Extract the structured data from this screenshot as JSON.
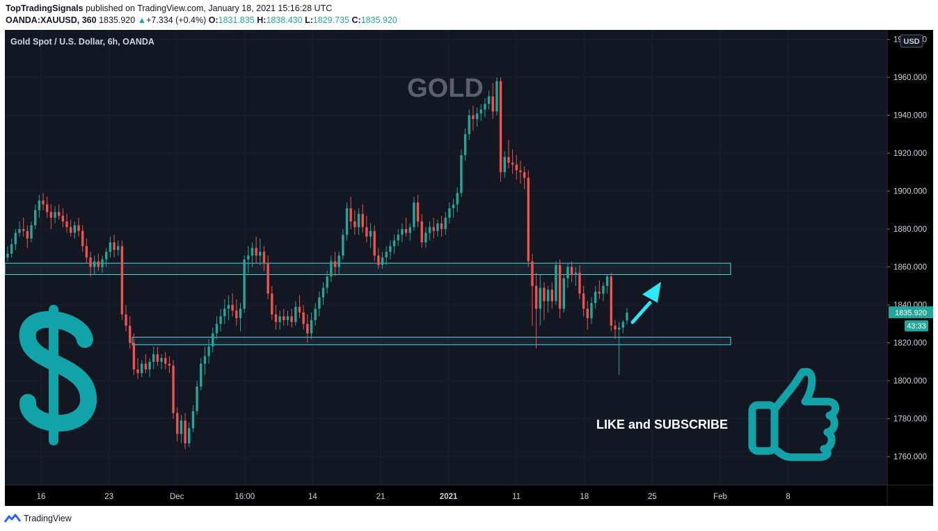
{
  "header": {
    "author": "TopTradingSignals",
    "published": "published on TradingView.com, January 18, 2021 15:16:28 UTC",
    "symbol": "OANDA:XAUUSD, 360",
    "last": "1835.920",
    "change": "+7.334 (+0.4%)",
    "o_label": "O:",
    "o": "1831.835",
    "h_label": "H:",
    "h": "1838.430",
    "l_label": "L:",
    "l": "1829.735",
    "c_label": "C:",
    "c": "1835.920"
  },
  "colors": {
    "up": "#26a69a",
    "down": "#ef5350",
    "background": "#000000",
    "zone": "#4fd6e8",
    "accent": "#12a3a8"
  },
  "footer": {
    "brand": "TradingView"
  },
  "chart_data": {
    "type": "candlestick",
    "title": "Gold Spot / U.S. Dollar, 6h, OANDA",
    "watermark": "GOLD",
    "currency": "USD",
    "ylim": [
      1745,
      1985
    ],
    "y_ticks": [
      "1980.000",
      "1960.000",
      "1940.000",
      "1920.000",
      "1900.000",
      "1880.000",
      "1860.000",
      "1840.000",
      "1820.000",
      "1800.000",
      "1780.000",
      "1760.000"
    ],
    "x_ticks": [
      "16",
      "23",
      "Dec",
      "16:00",
      "14",
      "21",
      "2021",
      "11",
      "18",
      "25",
      "Feb",
      "8"
    ],
    "last_price": "1835.920",
    "countdown": "43:33",
    "zones": [
      {
        "low": 1856,
        "high": 1862
      },
      {
        "low": 1819,
        "high": 1823
      }
    ],
    "annotation": "LIKE and SUBSCRIBE",
    "candles": [
      [
        1865.0,
        1871.0,
        1863.0,
        1867.0
      ],
      [
        1867.0,
        1875.0,
        1865.0,
        1872.0
      ],
      [
        1872.0,
        1880.0,
        1869.0,
        1878.0
      ],
      [
        1878.0,
        1884.0,
        1876.0,
        1880.0
      ],
      [
        1880.0,
        1886.0,
        1876.0,
        1879.0
      ],
      [
        1879.0,
        1882.0,
        1870.0,
        1875.0
      ],
      [
        1875.0,
        1884.0,
        1873.0,
        1882.0
      ],
      [
        1882.0,
        1893.0,
        1880.0,
        1890.0
      ],
      [
        1890.0,
        1898.0,
        1886.0,
        1895.0
      ],
      [
        1895.0,
        1899.0,
        1890.0,
        1893.0
      ],
      [
        1893.0,
        1897.0,
        1886.0,
        1889.0
      ],
      [
        1889.0,
        1893.0,
        1880.0,
        1886.0
      ],
      [
        1886.0,
        1892.0,
        1883.0,
        1889.0
      ],
      [
        1889.0,
        1893.0,
        1885.0,
        1887.0
      ],
      [
        1887.0,
        1891.0,
        1881.0,
        1884.0
      ],
      [
        1884.0,
        1888.0,
        1878.0,
        1881.0
      ],
      [
        1881.0,
        1885.0,
        1876.0,
        1878.0
      ],
      [
        1878.0,
        1884.0,
        1875.0,
        1882.0
      ],
      [
        1882.0,
        1886.0,
        1876.0,
        1879.0
      ],
      [
        1879.0,
        1882.0,
        1868.0,
        1871.0
      ],
      [
        1871.0,
        1875.0,
        1862.0,
        1865.0
      ],
      [
        1865.0,
        1868.0,
        1855.0,
        1860.0
      ],
      [
        1860.0,
        1866.0,
        1856.0,
        1863.0
      ],
      [
        1863.0,
        1867.0,
        1858.0,
        1860.0
      ],
      [
        1860.0,
        1866.0,
        1857.0,
        1864.0
      ],
      [
        1864.0,
        1870.0,
        1860.0,
        1868.0
      ],
      [
        1868.0,
        1876.0,
        1865.0,
        1873.0
      ],
      [
        1873.0,
        1877.0,
        1865.0,
        1869.0
      ],
      [
        1869.0,
        1874.0,
        1866.0,
        1871.0
      ],
      [
        1871.0,
        1874.0,
        1832.0,
        1835.0
      ],
      [
        1835.0,
        1840.0,
        1826.0,
        1829.0
      ],
      [
        1829.0,
        1834.0,
        1817.0,
        1820.0
      ],
      [
        1820.0,
        1825.0,
        1803.0,
        1806.0
      ],
      [
        1806.0,
        1812.0,
        1801.0,
        1804.0
      ],
      [
        1804.0,
        1811.0,
        1802.0,
        1809.0
      ],
      [
        1809.0,
        1814.0,
        1804.0,
        1806.0
      ],
      [
        1806.0,
        1812.0,
        1802.0,
        1810.0
      ],
      [
        1810.0,
        1818.0,
        1806.0,
        1814.0
      ],
      [
        1814.0,
        1818.0,
        1808.0,
        1810.0
      ],
      [
        1810.0,
        1814.0,
        1806.0,
        1812.0
      ],
      [
        1812.0,
        1815.0,
        1806.0,
        1809.0
      ],
      [
        1809.0,
        1813.0,
        1804.0,
        1808.0
      ],
      [
        1808.0,
        1811.0,
        1780.0,
        1783.0
      ],
      [
        1783.0,
        1786.0,
        1768.0,
        1772.0
      ],
      [
        1772.0,
        1782.0,
        1767.0,
        1779.0
      ],
      [
        1779.0,
        1783.0,
        1764.0,
        1767.0
      ],
      [
        1767.0,
        1778.0,
        1765.0,
        1775.0
      ],
      [
        1775.0,
        1787.0,
        1773.0,
        1784.0
      ],
      [
        1784.0,
        1800.0,
        1782.0,
        1797.0
      ],
      [
        1797.0,
        1812.0,
        1795.0,
        1809.0
      ],
      [
        1809.0,
        1818.0,
        1803.0,
        1813.0
      ],
      [
        1813.0,
        1822.0,
        1809.0,
        1818.0
      ],
      [
        1818.0,
        1828.0,
        1815.0,
        1825.0
      ],
      [
        1825.0,
        1834.0,
        1822.0,
        1830.0
      ],
      [
        1830.0,
        1838.0,
        1826.0,
        1834.0
      ],
      [
        1834.0,
        1843.0,
        1830.0,
        1838.0
      ],
      [
        1838.0,
        1845.0,
        1832.0,
        1840.0
      ],
      [
        1840.0,
        1846.0,
        1834.0,
        1837.0
      ],
      [
        1837.0,
        1843.0,
        1829.0,
        1833.0
      ],
      [
        1833.0,
        1841.0,
        1826.0,
        1838.0
      ],
      [
        1838.0,
        1866.0,
        1836.0,
        1864.0
      ],
      [
        1864.0,
        1871.0,
        1857.0,
        1866.0
      ],
      [
        1866.0,
        1873.0,
        1860.0,
        1870.0
      ],
      [
        1870.0,
        1876.0,
        1862.0,
        1866.0
      ],
      [
        1866.0,
        1875.0,
        1861.0,
        1868.0
      ],
      [
        1868.0,
        1871.0,
        1858.0,
        1862.0
      ],
      [
        1862.0,
        1866.0,
        1843.0,
        1846.0
      ],
      [
        1846.0,
        1850.0,
        1832.0,
        1835.0
      ],
      [
        1835.0,
        1840.0,
        1827.0,
        1831.0
      ],
      [
        1831.0,
        1837.0,
        1827.0,
        1834.0
      ],
      [
        1834.0,
        1838.0,
        1829.0,
        1832.0
      ],
      [
        1832.0,
        1837.0,
        1829.0,
        1834.0
      ],
      [
        1834.0,
        1838.0,
        1828.0,
        1831.0
      ],
      [
        1831.0,
        1842.0,
        1829.0,
        1839.0
      ],
      [
        1839.0,
        1845.0,
        1833.0,
        1836.0
      ],
      [
        1836.0,
        1840.0,
        1827.0,
        1830.0
      ],
      [
        1830.0,
        1835.0,
        1820.0,
        1825.0
      ],
      [
        1825.0,
        1836.0,
        1822.0,
        1832.0
      ],
      [
        1832.0,
        1841.0,
        1829.0,
        1838.0
      ],
      [
        1838.0,
        1847.0,
        1834.0,
        1844.0
      ],
      [
        1844.0,
        1852.0,
        1840.0,
        1849.0
      ],
      [
        1849.0,
        1858.0,
        1846.0,
        1855.0
      ],
      [
        1855.0,
        1866.0,
        1852.0,
        1863.0
      ],
      [
        1863.0,
        1868.0,
        1855.0,
        1860.0
      ],
      [
        1860.0,
        1868.0,
        1856.0,
        1866.0
      ],
      [
        1866.0,
        1880.0,
        1864.0,
        1877.0
      ],
      [
        1877.0,
        1894.0,
        1874.0,
        1891.0
      ],
      [
        1891.0,
        1897.0,
        1880.0,
        1884.0
      ],
      [
        1884.0,
        1890.0,
        1877.0,
        1881.0
      ],
      [
        1881.0,
        1891.0,
        1877.0,
        1888.0
      ],
      [
        1888.0,
        1893.0,
        1878.0,
        1881.0
      ],
      [
        1881.0,
        1887.0,
        1873.0,
        1876.0
      ],
      [
        1876.0,
        1883.0,
        1870.0,
        1879.0
      ],
      [
        1879.0,
        1882.0,
        1863.0,
        1866.0
      ],
      [
        1866.0,
        1870.0,
        1859.0,
        1861.0
      ],
      [
        1861.0,
        1868.0,
        1859.0,
        1865.0
      ],
      [
        1865.0,
        1871.0,
        1861.0,
        1868.0
      ],
      [
        1868.0,
        1874.0,
        1864.0,
        1871.0
      ],
      [
        1871.0,
        1877.0,
        1867.0,
        1874.0
      ],
      [
        1874.0,
        1880.0,
        1871.0,
        1877.0
      ],
      [
        1877.0,
        1883.0,
        1873.0,
        1880.0
      ],
      [
        1880.0,
        1886.0,
        1876.0,
        1878.0
      ],
      [
        1878.0,
        1883.0,
        1874.0,
        1881.0
      ],
      [
        1881.0,
        1897.0,
        1879.0,
        1894.0
      ],
      [
        1894.0,
        1898.0,
        1881.0,
        1884.0
      ],
      [
        1884.0,
        1888.0,
        1870.0,
        1873.0
      ],
      [
        1873.0,
        1881.0,
        1870.0,
        1878.0
      ],
      [
        1878.0,
        1884.0,
        1874.0,
        1881.0
      ],
      [
        1881.0,
        1886.0,
        1875.0,
        1879.0
      ],
      [
        1879.0,
        1885.0,
        1876.0,
        1883.0
      ],
      [
        1883.0,
        1887.0,
        1876.0,
        1880.0
      ],
      [
        1880.0,
        1889.0,
        1877.0,
        1886.0
      ],
      [
        1886.0,
        1894.0,
        1883.0,
        1891.0
      ],
      [
        1891.0,
        1896.0,
        1886.0,
        1893.0
      ],
      [
        1893.0,
        1902.0,
        1889.0,
        1899.0
      ],
      [
        1899.0,
        1922.0,
        1897.0,
        1919.0
      ],
      [
        1919.0,
        1933.0,
        1916.0,
        1930.0
      ],
      [
        1930.0,
        1943.0,
        1927.0,
        1940.0
      ],
      [
        1940.0,
        1945.0,
        1932.0,
        1938.0
      ],
      [
        1938.0,
        1944.0,
        1934.0,
        1941.0
      ],
      [
        1941.0,
        1946.0,
        1937.0,
        1943.0
      ],
      [
        1943.0,
        1949.0,
        1939.0,
        1946.0
      ],
      [
        1946.0,
        1953.0,
        1943.0,
        1950.0
      ],
      [
        1950.0,
        1957.0,
        1938.0,
        1942.0
      ],
      [
        1942.0,
        1960.0,
        1940.0,
        1958.0
      ],
      [
        1958.0,
        1960.0,
        1905.0,
        1910.0
      ],
      [
        1910.0,
        1921.0,
        1907.0,
        1918.0
      ],
      [
        1918.0,
        1927.0,
        1912.0,
        1915.0
      ],
      [
        1915.0,
        1922.0,
        1909.0,
        1914.0
      ],
      [
        1914.0,
        1919.0,
        1906.0,
        1911.0
      ],
      [
        1911.0,
        1916.0,
        1904.0,
        1910.0
      ],
      [
        1910.0,
        1913.0,
        1901.0,
        1907.0
      ],
      [
        1907.0,
        1911.0,
        1860.0,
        1863.0
      ],
      [
        1863.0,
        1867.0,
        1829.0,
        1850.0
      ],
      [
        1850.0,
        1857.0,
        1817.0,
        1838.0
      ],
      [
        1838.0,
        1856.0,
        1829.0,
        1849.0
      ],
      [
        1849.0,
        1852.0,
        1832.0,
        1842.0
      ],
      [
        1842.0,
        1850.0,
        1836.0,
        1848.0
      ],
      [
        1848.0,
        1852.0,
        1838.0,
        1842.0
      ],
      [
        1842.0,
        1863.0,
        1840.0,
        1861.0
      ],
      [
        1861.0,
        1864.0,
        1833.0,
        1838.0
      ],
      [
        1838.0,
        1856.0,
        1836.0,
        1854.0
      ],
      [
        1854.0,
        1862.0,
        1849.0,
        1860.0
      ],
      [
        1860.0,
        1863.0,
        1852.0,
        1856.0
      ],
      [
        1856.0,
        1860.0,
        1850.0,
        1857.0
      ],
      [
        1857.0,
        1861.0,
        1843.0,
        1846.0
      ],
      [
        1846.0,
        1850.0,
        1834.0,
        1838.0
      ],
      [
        1838.0,
        1842.0,
        1827.0,
        1833.0
      ],
      [
        1833.0,
        1844.0,
        1830.0,
        1841.0
      ],
      [
        1841.0,
        1850.0,
        1838.0,
        1847.0
      ],
      [
        1847.0,
        1853.0,
        1843.0,
        1846.0
      ],
      [
        1846.0,
        1852.0,
        1842.0,
        1850.0
      ],
      [
        1850.0,
        1856.0,
        1846.0,
        1855.0
      ],
      [
        1855.0,
        1857.0,
        1826.0,
        1829.0
      ],
      [
        1829.0,
        1832.0,
        1822.0,
        1827.0
      ],
      [
        1827.0,
        1831.0,
        1803.0,
        1828.0
      ],
      [
        1828.0,
        1832.0,
        1825.0,
        1831.0
      ],
      [
        1831.835,
        1838.43,
        1829.735,
        1835.92
      ]
    ]
  }
}
